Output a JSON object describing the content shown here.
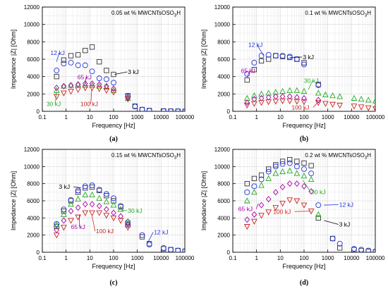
{
  "chart_data": [
    {
      "type": "scatter",
      "title": "0.05 wt % MWCNTsOSO",
      "title_sub": "3",
      "title_end": "H",
      "xlabel": "Frequency [Hz]",
      "ylabel": "Impedance |Z| [Ohm]",
      "caption": "(a)",
      "x_scale": "log",
      "xlim": [
        0.1,
        100000
      ],
      "ylim": [
        0,
        12000
      ],
      "grid": true,
      "x_tick_labels": [
        "0.1",
        "1",
        "10",
        "100",
        "1000",
        "10000",
        "100000"
      ],
      "y_tick_labels": [
        "0",
        "2000",
        "4000",
        "6000",
        "8000",
        "10000",
        "12000"
      ],
      "series": [
        {
          "name": "3 kJ",
          "color": "#333333",
          "marker": "square",
          "x": [
            0.4,
            0.8,
            1.6,
            3.2,
            6.4,
            12.5,
            25,
            50,
            100,
            400,
            800,
            1600,
            3200,
            12800,
            25600,
            51200,
            102400
          ],
          "y": [
            4000,
            5900,
            6400,
            6500,
            7000,
            7400,
            5700,
            4700,
            4250,
            1800,
            600,
            200,
            90,
            40,
            20,
            10,
            0
          ]
        },
        {
          "name": "12 kJ",
          "color": "#2233dd",
          "marker": "circle",
          "x": [
            0.4,
            0.8,
            1.6,
            3.2,
            6.4,
            12.5,
            25,
            50,
            100,
            400,
            800,
            1600,
            3200,
            12800,
            25600,
            51200,
            102400
          ],
          "y": [
            4700,
            5500,
            5600,
            5300,
            5300,
            4600,
            3800,
            3700,
            3300,
            1700,
            550,
            200,
            80,
            30,
            20,
            10,
            0
          ]
        },
        {
          "name": "30 kJ",
          "color": "#22aa22",
          "marker": "triangle-up",
          "x": [
            0.4,
            0.8,
            1.6,
            3.2,
            6.4,
            12.5,
            25,
            50,
            100,
            400
          ],
          "y": [
            2400,
            2900,
            3000,
            3100,
            3000,
            3000,
            2900,
            2800,
            2400,
            1500
          ]
        },
        {
          "name": "65 kJ",
          "color": "#aa00aa",
          "marker": "diamond",
          "x": [
            0.4,
            0.8,
            1.6,
            3.2,
            6.4,
            12.5,
            25,
            50,
            100,
            400
          ],
          "y": [
            2700,
            2900,
            3000,
            3100,
            3200,
            3200,
            3100,
            2900,
            2600,
            1600
          ]
        },
        {
          "name": "100 kJ",
          "color": "#cc2222",
          "marker": "triangle-down",
          "x": [
            0.4,
            0.8,
            1.6,
            3.2,
            6.4,
            12.5,
            25,
            50,
            100,
            400
          ],
          "y": [
            1700,
            2100,
            2300,
            2500,
            2700,
            2700,
            2600,
            2400,
            2200,
            1400
          ]
        }
      ],
      "labels": [
        {
          "text": "12 kJ",
          "series": "12 kJ",
          "color": "#2233dd",
          "tx": 0.22,
          "ty": 6500,
          "ax": 0.4,
          "ay": 5700
        },
        {
          "text": "65 kJ",
          "series": "65 kJ",
          "color": "#aa00aa",
          "tx": 3.0,
          "ty": 3700,
          "ax": 6.4,
          "ay": 3200
        },
        {
          "text": "3 kJ",
          "series": "3 kJ",
          "color": "#000000",
          "tx": 400,
          "ty": 4300,
          "ax": 110,
          "ay": 4250
        },
        {
          "text": "30 kJ",
          "series": "30 kJ",
          "color": "#22aa22",
          "tx": 0.15,
          "ty": 600,
          "ax": 0.4,
          "ay": 2300
        },
        {
          "text": "100 kJ",
          "series": "100 kJ",
          "color": "#cc2222",
          "tx": 4.0,
          "ty": 600,
          "ax": 12,
          "ay": 2500
        }
      ]
    },
    {
      "type": "scatter",
      "title": "0.1 wt % MWCNTsOSO",
      "title_sub": "3",
      "title_end": "H",
      "xlabel": "Frequency [Hz]",
      "ylabel": "Impedance |Z| [Ohm]",
      "caption": "(b)",
      "x_scale": "log",
      "xlim": [
        0.1,
        100000
      ],
      "ylim": [
        0,
        12000
      ],
      "grid": true,
      "x_tick_labels": [
        "0.1",
        "1",
        "10",
        "100",
        "1000",
        "10000",
        "100000"
      ],
      "y_tick_labels": [
        "0",
        "2000",
        "4000",
        "6000",
        "8000",
        "10000",
        "12000"
      ],
      "series": [
        {
          "name": "3 kJ",
          "color": "#333333",
          "marker": "square",
          "x": [
            0.4,
            0.8,
            1.6,
            3.2,
            6.4,
            12.5,
            25,
            50,
            100,
            400
          ],
          "y": [
            3600,
            4800,
            5800,
            6000,
            6400,
            6300,
            6200,
            6000,
            5600,
            3100
          ]
        },
        {
          "name": "12 kJ",
          "color": "#2233dd",
          "marker": "circle",
          "x": [
            0.4,
            0.8,
            1.6,
            3.2,
            6.4,
            12.5,
            25,
            50,
            100,
            400
          ],
          "y": [
            4300,
            5600,
            6400,
            6500,
            6400,
            6400,
            6300,
            6000,
            5400,
            3000
          ]
        },
        {
          "name": "30 kJ",
          "color": "#22aa22",
          "marker": "triangle-up",
          "x": [
            0.4,
            0.8,
            1.6,
            3.2,
            6.4,
            12.5,
            25,
            50,
            100,
            400,
            800,
            1600,
            3200,
            12800,
            25600,
            51200,
            102400
          ],
          "y": [
            1500,
            1800,
            2000,
            2100,
            2200,
            2300,
            2400,
            2400,
            2300,
            2100,
            1900,
            1800,
            1700,
            1500,
            1400,
            1300,
            1200
          ]
        },
        {
          "name": "65 kJ",
          "color": "#aa00aa",
          "marker": "diamond",
          "x": [
            0.4,
            0.8,
            1.6,
            3.2,
            6.4,
            12.5,
            25,
            50,
            100,
            400
          ],
          "y": [
            1000,
            1400,
            1500,
            1600,
            1700,
            1700,
            1700,
            1600,
            1500,
            1300
          ]
        },
        {
          "name": "100 kJ",
          "color": "#cc2222",
          "marker": "triangle-down",
          "x": [
            0.4,
            0.8,
            1.6,
            3.2,
            6.4,
            12.5,
            25,
            50,
            100,
            400,
            800,
            1600,
            3200,
            12800,
            25600,
            51200,
            102400
          ],
          "y": [
            700,
            900,
            1000,
            1100,
            1150,
            1200,
            1200,
            1150,
            1100,
            1000,
            900,
            800,
            700,
            600,
            500,
            400,
            300
          ]
        }
      ],
      "labels": [
        {
          "text": "12 kJ",
          "series": "12 kJ",
          "color": "#2233dd",
          "tx": 0.45,
          "ty": 7400,
          "ax": 2.0,
          "ay": 6400
        },
        {
          "text": "3 kJ",
          "series": "3 kJ",
          "color": "#000000",
          "tx": 90,
          "ty": 6000,
          "ax": 25,
          "ay": 6200
        },
        {
          "text": "65 kJ",
          "series": "65 kJ",
          "color": "#aa00aa",
          "tx": 0.22,
          "ty": 4400,
          "ax": 0.4,
          "ay": 3900
        },
        {
          "text": "30 kJ",
          "series": "30 kJ",
          "color": "#22aa22",
          "tx": 100,
          "ty": 3300,
          "ax": 150,
          "ay": 2500
        },
        {
          "text": "100 kJ",
          "series": "100 kJ",
          "color": "#cc2222",
          "tx": 30,
          "ty": 200,
          "ax": 400,
          "ay": 1100
        }
      ]
    },
    {
      "type": "scatter",
      "title": "0.15 wt % MWCNTsOSO",
      "title_sub": "3",
      "title_end": "H",
      "xlabel": "Frequency [Hz]",
      "ylabel": "Impedance |Z| [Ohm]",
      "caption": "(c)",
      "x_scale": "log",
      "xlim": [
        0.1,
        100000
      ],
      "ylim": [
        0,
        12000
      ],
      "grid": true,
      "x_tick_labels": [
        "0.1",
        "1",
        "10",
        "100",
        "1000",
        "10000",
        "100000"
      ],
      "y_tick_labels": [
        "0",
        "2000",
        "4000",
        "6000",
        "8000",
        "10000",
        "12000"
      ],
      "series": [
        {
          "name": "3 kJ",
          "color": "#333333",
          "marker": "square",
          "x": [
            0.4,
            0.8,
            1.6,
            3.2,
            6.4,
            12.5,
            25,
            50,
            100,
            200,
            400,
            1600,
            3200,
            12800,
            25600,
            51200,
            102400
          ],
          "y": [
            3000,
            4800,
            6000,
            7000,
            7500,
            7600,
            7200,
            6600,
            6000,
            5300,
            3200,
            1800,
            1000,
            400,
            300,
            200,
            100
          ]
        },
        {
          "name": "12 kJ",
          "color": "#2233dd",
          "marker": "circle",
          "x": [
            0.4,
            0.8,
            1.6,
            3.2,
            6.4,
            12.5,
            25,
            50,
            100,
            200,
            400,
            1600,
            3200,
            12800,
            25600,
            51200,
            102400
          ],
          "y": [
            3300,
            5000,
            6100,
            7200,
            7700,
            7800,
            7300,
            6800,
            6300,
            5400,
            3500,
            2000,
            900,
            500,
            300,
            200,
            150
          ]
        },
        {
          "name": "30 kJ",
          "color": "#22aa22",
          "marker": "triangle-up",
          "x": [
            0.4,
            0.8,
            1.6,
            3.2,
            6.4,
            12.5,
            25,
            50,
            100,
            200,
            400
          ],
          "y": [
            3200,
            4400,
            5600,
            6200,
            6700,
            6700,
            6300,
            5900,
            5500,
            5000,
            3600
          ]
        },
        {
          "name": "65 kJ",
          "color": "#aa00aa",
          "marker": "diamond",
          "x": [
            0.4,
            0.8,
            1.6,
            3.2,
            6.4,
            12.5,
            25,
            50,
            100,
            200,
            400
          ],
          "y": [
            2600,
            3700,
            4800,
            5200,
            5600,
            5600,
            5400,
            5000,
            4600,
            4200,
            3300
          ]
        },
        {
          "name": "100 kJ",
          "color": "#cc2222",
          "marker": "triangle-down",
          "x": [
            0.4,
            0.8,
            1.6,
            3.2,
            6.4,
            12.5,
            25,
            50,
            100,
            200,
            400
          ],
          "y": [
            2000,
            2900,
            3700,
            4100,
            4600,
            4600,
            4600,
            4300,
            4000,
            3700,
            2900
          ]
        }
      ],
      "labels": [
        {
          "text": "3 kJ",
          "series": "3 kJ",
          "color": "#000000",
          "tx": 0.5,
          "ty": 7400,
          "ax": 4.2,
          "ay": 7500
        },
        {
          "text": "65 kJ",
          "series": "65 kJ",
          "color": "#aa00aa",
          "tx": 1.6,
          "ty": 2700,
          "ax": 3.6,
          "ay": 4400
        },
        {
          "text": "100 kJ",
          "series": "100 kJ",
          "color": "#cc2222",
          "tx": 18,
          "ty": 2200,
          "ax": 12,
          "ay": 4400
        },
        {
          "text": "30 kJ",
          "series": "30 kJ",
          "color": "#22aa22",
          "tx": 400,
          "ty": 4600,
          "ax": 200,
          "ay": 4900
        },
        {
          "text": "12 kJ",
          "series": "12 kJ",
          "color": "#2233dd",
          "tx": 5000,
          "ty": 2100,
          "ax": 2500,
          "ay": 900
        }
      ]
    },
    {
      "type": "scatter",
      "title": "0.2 wt % MWCNTsOSO",
      "title_sub": "3",
      "title_end": "H",
      "xlabel": "Frequency [Hz]",
      "ylabel": "Impedance |Z| [Ohm]",
      "caption": "(d)",
      "x_scale": "log",
      "xlim": [
        0.1,
        100000
      ],
      "ylim": [
        0,
        12000
      ],
      "grid": true,
      "x_tick_labels": [
        "0.1",
        "1",
        "10",
        "100",
        "1000",
        "10000",
        "100000"
      ],
      "y_tick_labels": [
        "0",
        "2000",
        "4000",
        "6000",
        "8000",
        "10000",
        "12000"
      ],
      "series": [
        {
          "name": "3 kJ",
          "color": "#333333",
          "marker": "square",
          "x": [
            0.4,
            0.8,
            1.6,
            3.2,
            6.4,
            12.5,
            25,
            50,
            100,
            200,
            400,
            1600,
            3200,
            12800,
            25600,
            51200,
            102400
          ],
          "y": [
            8000,
            8600,
            9000,
            9700,
            10200,
            10600,
            10800,
            10600,
            10400,
            10100,
            4000,
            1600,
            500,
            300,
            200,
            100,
            50
          ]
        },
        {
          "name": "12 kJ",
          "color": "#2233dd",
          "marker": "circle",
          "x": [
            0.4,
            0.8,
            1.6,
            3.2,
            6.4,
            12.5,
            25,
            50,
            100,
            200,
            400,
            1600,
            3200,
            12800,
            25600,
            51200,
            102400
          ],
          "y": [
            7000,
            7700,
            8500,
            9400,
            10000,
            10300,
            10400,
            10000,
            9700,
            9200,
            5500,
            1600,
            1000,
            400,
            300,
            200,
            100
          ]
        },
        {
          "name": "30 kJ",
          "color": "#22aa22",
          "marker": "triangle-up",
          "x": [
            0.4,
            0.8,
            1.6,
            3.2,
            6.4,
            12.5,
            25,
            50,
            100,
            200,
            400
          ],
          "y": [
            6000,
            7000,
            7800,
            8600,
            9200,
            9400,
            9500,
            9200,
            8900,
            8500,
            4400
          ]
        },
        {
          "name": "65 kJ",
          "color": "#aa00aa",
          "marker": "diamond",
          "x": [
            0.4,
            0.8,
            1.6,
            3.2,
            6.4,
            12.5,
            25,
            50,
            100,
            200
          ],
          "y": [
            3800,
            4400,
            5500,
            6200,
            7000,
            7600,
            8000,
            8000,
            7700,
            7100
          ]
        },
        {
          "name": "100 kJ",
          "color": "#cc2222",
          "marker": "triangle-down",
          "x": [
            0.4,
            0.8,
            1.6,
            3.2,
            6.4,
            12.5,
            25,
            50,
            100,
            200
          ],
          "y": [
            3000,
            3600,
            4300,
            4700,
            5200,
            5700,
            6100,
            6000,
            5500,
            4800
          ]
        }
      ],
      "labels": [
        {
          "text": "30 kJ",
          "series": "30 kJ",
          "color": "#22aa22",
          "tx": 200,
          "ty": 6800,
          "ax": 90,
          "ay": 8400
        },
        {
          "text": "65 kJ",
          "series": "65 kJ",
          "color": "#aa00aa",
          "tx": 0.17,
          "ty": 4800,
          "ax": 1.2,
          "ay": 5700
        },
        {
          "text": "100 kJ",
          "series": "100 kJ",
          "color": "#cc2222",
          "tx": 5.0,
          "ty": 4500,
          "ax": 200,
          "ay": 4800
        },
        {
          "text": "12 kJ",
          "series": "12 kJ",
          "color": "#2233dd",
          "tx": 3000,
          "ty": 5300,
          "ax": 700,
          "ay": 5500
        },
        {
          "text": "3 kJ",
          "series": "3 kJ",
          "color": "#000000",
          "tx": 3000,
          "ty": 3000,
          "ax": 700,
          "ay": 3700
        }
      ]
    }
  ]
}
